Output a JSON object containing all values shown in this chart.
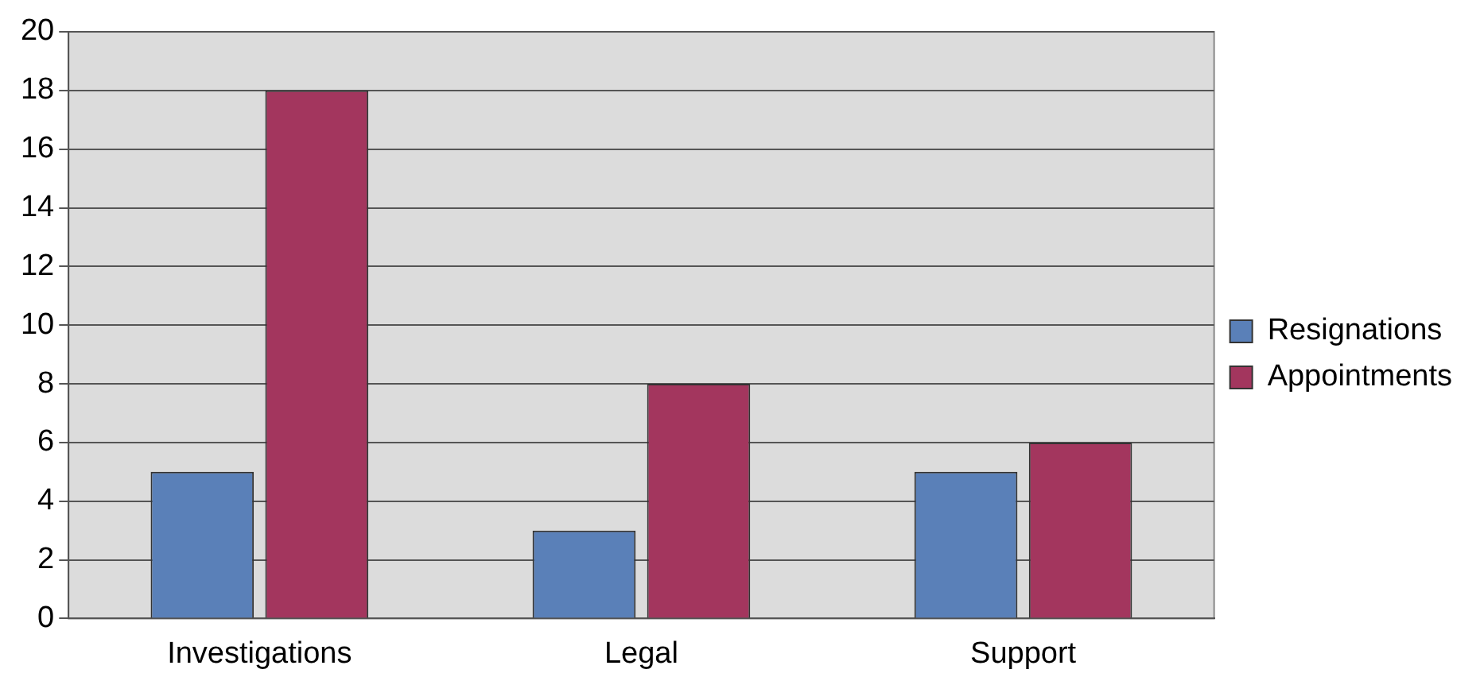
{
  "chart_data": {
    "type": "bar",
    "categories": [
      "Investigations",
      "Legal",
      "Support"
    ],
    "series": [
      {
        "name": "Resignations",
        "color": "#5a80b8",
        "values": [
          5,
          3,
          5
        ]
      },
      {
        "name": "Appointments",
        "color": "#a3365e",
        "values": [
          18,
          8,
          6
        ]
      }
    ],
    "ylim": [
      0,
      20
    ],
    "yticks": [
      0,
      2,
      4,
      6,
      8,
      10,
      12,
      14,
      16,
      18,
      20
    ],
    "grid": "y",
    "legend": "right"
  }
}
